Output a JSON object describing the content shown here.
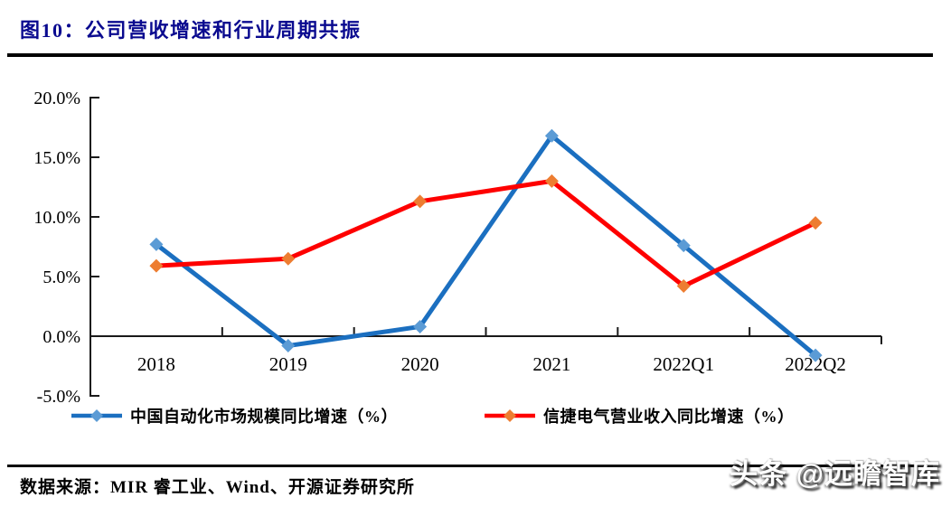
{
  "figure": {
    "title": "图10：公司营收增速和行业周期共振",
    "source": "数据来源：MIR 睿工业、Wind、开源证券研究所",
    "watermark": "头条 @远瞻智库"
  },
  "chart_data": {
    "type": "line",
    "title": "公司营收增速和行业周期共振",
    "categories": [
      "2018",
      "2019",
      "2020",
      "2021",
      "2022Q1",
      "2022Q2"
    ],
    "series": [
      {
        "name": "中国自动化市场规模同比增速（%）",
        "values": [
          7.7,
          -0.8,
          0.8,
          16.8,
          7.6,
          -1.6
        ],
        "line_color": "#1B6FC0",
        "marker_color": "#5B9BD5",
        "marker": "diamond"
      },
      {
        "name": "信捷电气营业收入同比增速（%）",
        "values": [
          5.9,
          6.5,
          11.3,
          13.0,
          4.2,
          9.5
        ],
        "line_color": "#FE0000",
        "marker_color": "#ED7D31",
        "marker": "diamond"
      }
    ],
    "ylim": [
      -5,
      20
    ],
    "y_tick_values": [
      20,
      15,
      10,
      5,
      0,
      -5
    ],
    "y_tick_labels": [
      "20.0%",
      "15.0%",
      "10.0%",
      "5.0%",
      "0.0%",
      "-5.0%"
    ],
    "xlabel": "",
    "ylabel": "",
    "grid": false,
    "legend_position": "bottom",
    "axis_color": "#1a1a1a"
  }
}
